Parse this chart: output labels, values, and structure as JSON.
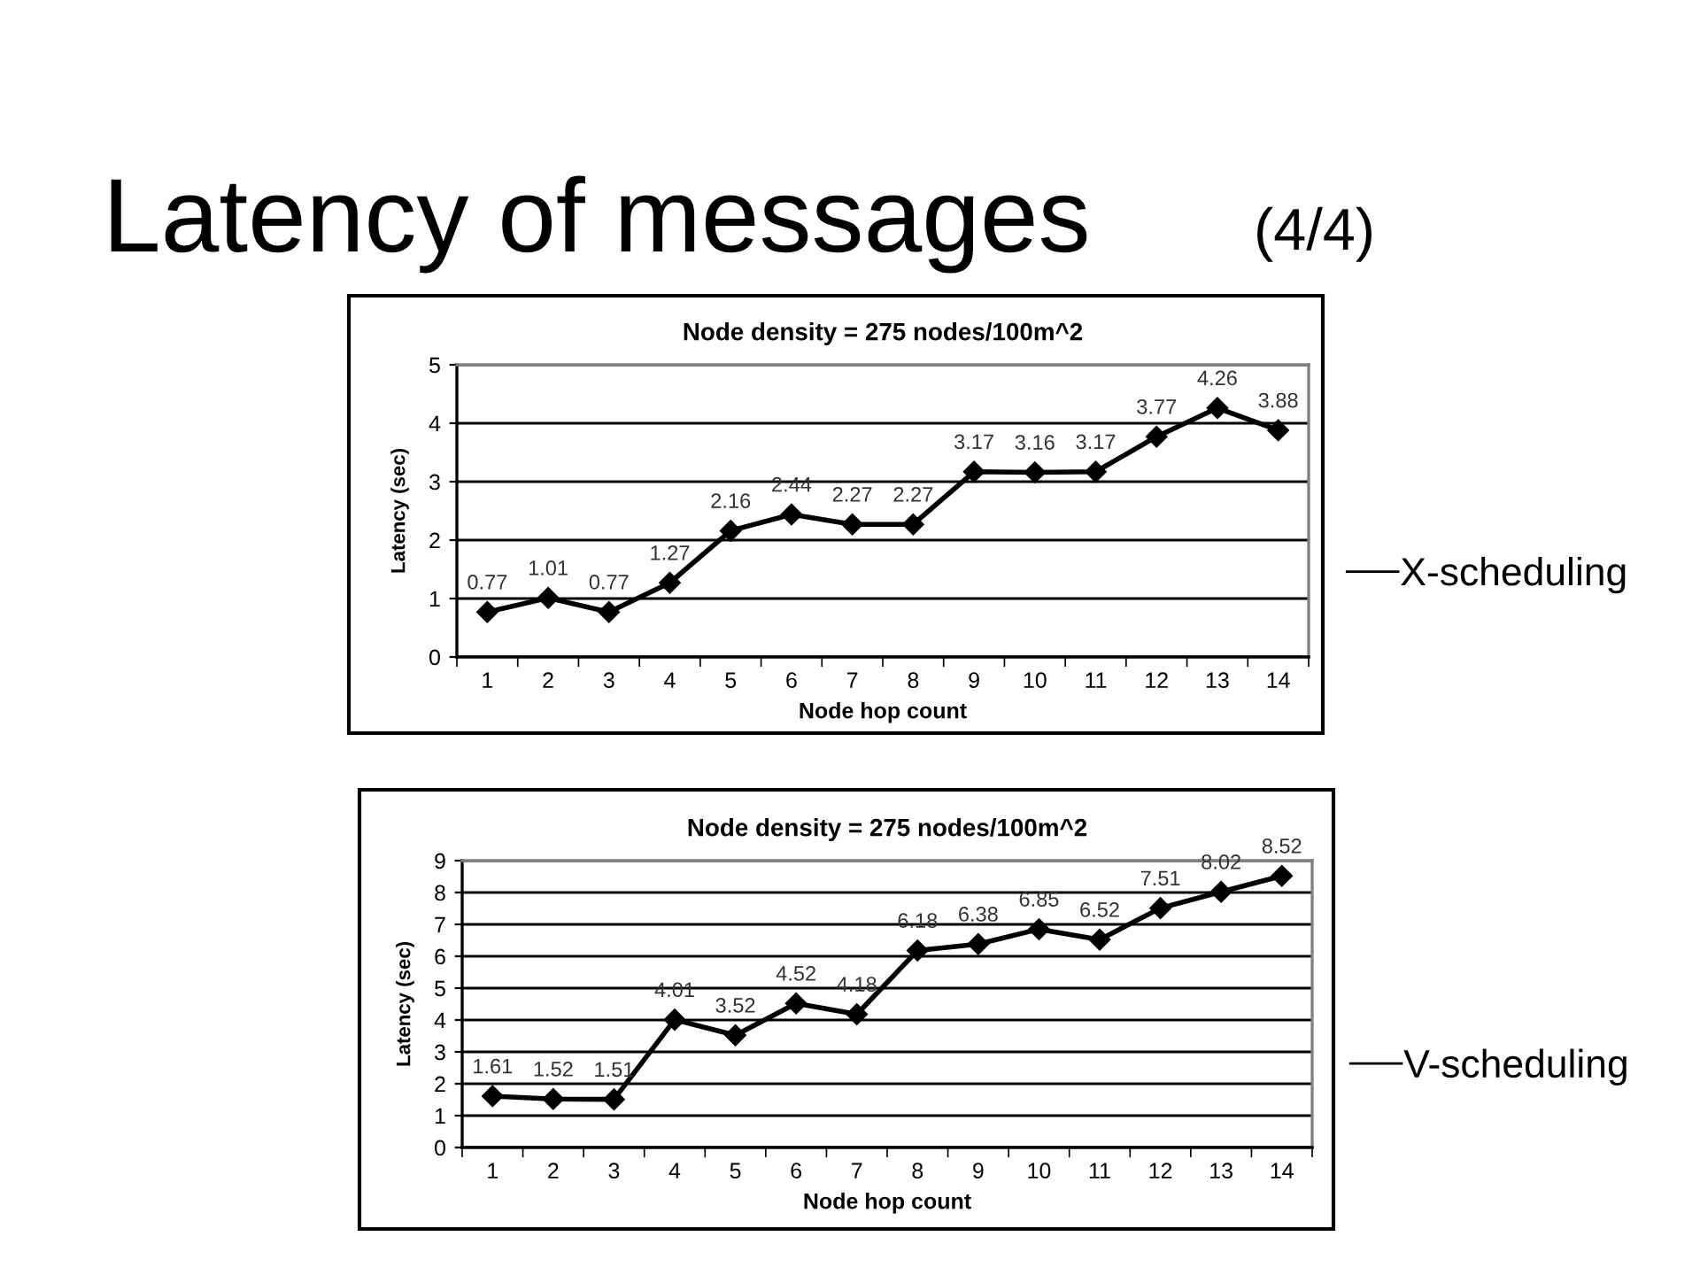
{
  "chart_data": [
    {
      "type": "line",
      "title": "Node density = 275 nodes/100m^2",
      "xlabel": "Node hop count",
      "ylabel": "Latency (sec)",
      "annotations": [
        "Latency of messages",
        "(4/4)"
      ],
      "categories": [
        "1",
        "2",
        "3",
        "4",
        "5",
        "6",
        "7",
        "8",
        "9",
        "10",
        "11",
        "12",
        "13",
        "14"
      ],
      "series": [
        {
          "name": "X-scheduling",
          "color": "#000000",
          "values": [
            0.77,
            1.01,
            0.77,
            1.27,
            2.16,
            2.44,
            2.27,
            2.27,
            3.17,
            3.16,
            3.17,
            3.77,
            4.26,
            3.88
          ]
        }
      ],
      "ylim": [
        0,
        5
      ],
      "yticks": [
        0,
        1,
        2,
        3,
        4,
        5
      ],
      "grid": "y",
      "legend": "right",
      "marker": "diamond",
      "line_style": "solid",
      "data_labels": true
    },
    {
      "type": "line",
      "title": "Node density = 275 nodes/100m^2",
      "xlabel": "Node hop count",
      "ylabel": "Latency (sec)",
      "categories": [
        "1",
        "2",
        "3",
        "4",
        "5",
        "6",
        "7",
        "8",
        "9",
        "10",
        "11",
        "12",
        "13",
        "14"
      ],
      "series": [
        {
          "name": "V-scheduling",
          "color": "#000000",
          "values": [
            1.61,
            1.52,
            1.51,
            4.01,
            3.52,
            4.52,
            4.18,
            6.18,
            6.38,
            6.85,
            6.52,
            7.51,
            8.02,
            8.52
          ]
        }
      ],
      "ylim": [
        0,
        9
      ],
      "yticks": [
        0,
        1,
        2,
        3,
        4,
        5,
        6,
        7,
        8,
        9
      ],
      "grid": "y",
      "legend": "right",
      "marker": "diamond",
      "line_style": "solid",
      "data_labels": true
    }
  ]
}
